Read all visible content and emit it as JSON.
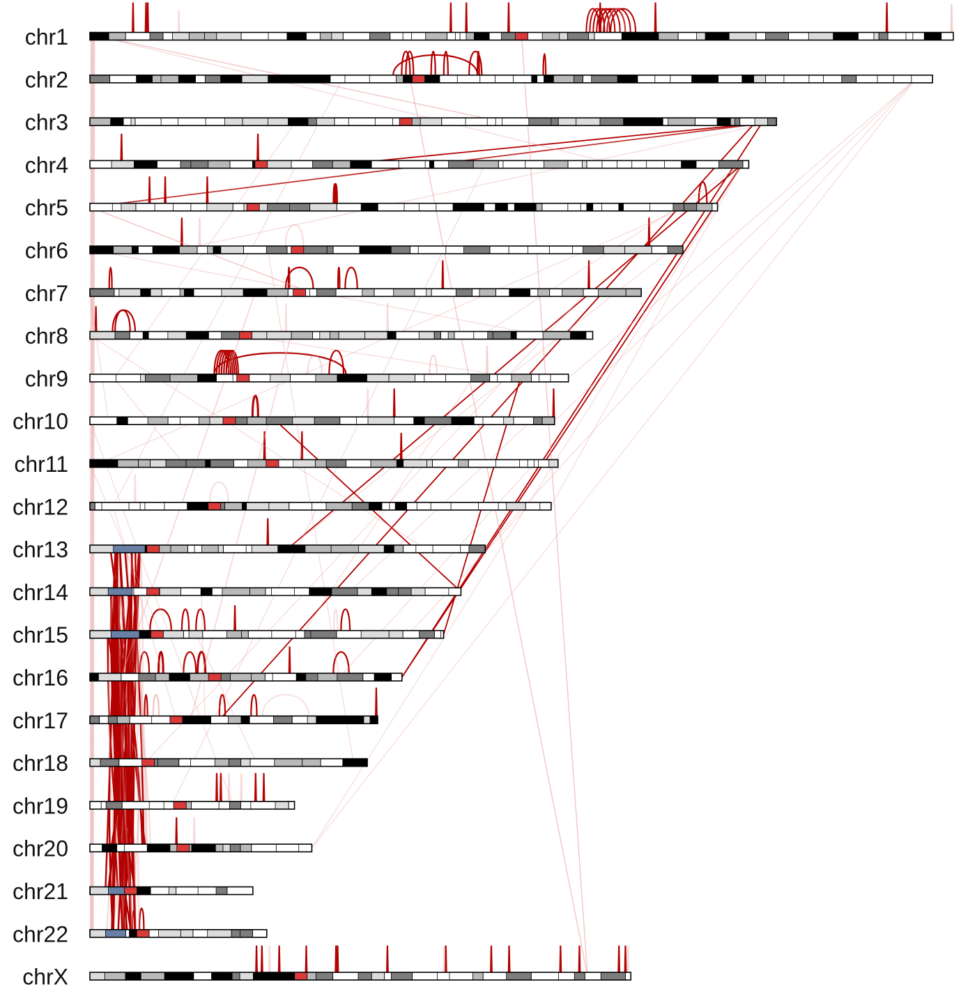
{
  "colors": {
    "arc": "#b30000",
    "arc_light": "#e8a0a0",
    "centromere": "#d93a3a",
    "gvar": "#6a7fa6",
    "outline": "#000000",
    "band_gneg": "#ffffff",
    "band_gpos25": "#dcdcdc",
    "band_gpos50": "#b9b9b9",
    "band_gpos75": "#7d7d7d",
    "band_gpos100": "#000000"
  },
  "chromosomes": [
    {
      "name": "chr1",
      "length_mb": 249
    },
    {
      "name": "chr2",
      "length_mb": 243
    },
    {
      "name": "chr3",
      "length_mb": 198
    },
    {
      "name": "chr4",
      "length_mb": 190
    },
    {
      "name": "chr5",
      "length_mb": 181
    },
    {
      "name": "chr6",
      "length_mb": 171
    },
    {
      "name": "chr7",
      "length_mb": 159
    },
    {
      "name": "chr8",
      "length_mb": 145
    },
    {
      "name": "chr9",
      "length_mb": 138
    },
    {
      "name": "chr10",
      "length_mb": 134
    },
    {
      "name": "chr11",
      "length_mb": 135
    },
    {
      "name": "chr12",
      "length_mb": 133
    },
    {
      "name": "chr13",
      "length_mb": 114
    },
    {
      "name": "chr14",
      "length_mb": 107
    },
    {
      "name": "chr15",
      "length_mb": 102
    },
    {
      "name": "chr16",
      "length_mb": 90
    },
    {
      "name": "chr17",
      "length_mb": 83
    },
    {
      "name": "chr18",
      "length_mb": 80
    },
    {
      "name": "chr19",
      "length_mb": 59
    },
    {
      "name": "chr20",
      "length_mb": 64
    },
    {
      "name": "chr21",
      "length_mb": 47
    },
    {
      "name": "chr22",
      "length_mb": 51
    },
    {
      "name": "chrX",
      "length_mb": 156
    }
  ]
}
